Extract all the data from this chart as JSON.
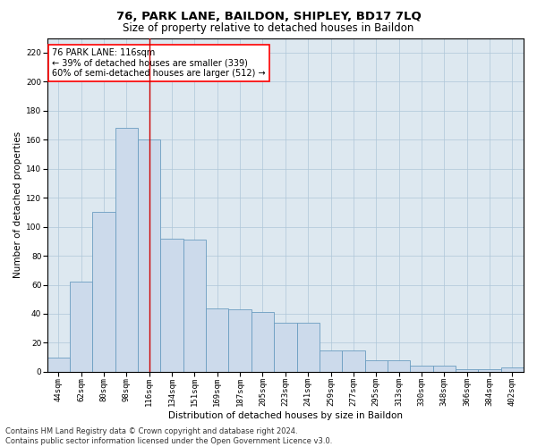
{
  "title1": "76, PARK LANE, BAILDON, SHIPLEY, BD17 7LQ",
  "title2": "Size of property relative to detached houses in Baildon",
  "xlabel": "Distribution of detached houses by size in Baildon",
  "ylabel": "Number of detached properties",
  "categories": [
    "44sqm",
    "62sqm",
    "80sqm",
    "98sqm",
    "116sqm",
    "134sqm",
    "151sqm",
    "169sqm",
    "187sqm",
    "205sqm",
    "223sqm",
    "241sqm",
    "259sqm",
    "277sqm",
    "295sqm",
    "313sqm",
    "330sqm",
    "348sqm",
    "366sqm",
    "384sqm",
    "402sqm"
  ],
  "values": [
    10,
    62,
    110,
    168,
    160,
    92,
    91,
    44,
    43,
    41,
    34,
    34,
    15,
    15,
    8,
    8,
    4,
    4,
    2,
    2,
    3
  ],
  "bar_color": "#ccdaeb",
  "bar_edge_color": "#6a9dc0",
  "highlight_x": "116sqm",
  "highlight_line_color": "#cc0000",
  "annotation_text": "76 PARK LANE: 116sqm\n← 39% of detached houses are smaller (339)\n60% of semi-detached houses are larger (512) →",
  "annotation_box_color": "white",
  "annotation_box_edge": "red",
  "ylim": [
    0,
    230
  ],
  "yticks": [
    0,
    20,
    40,
    60,
    80,
    100,
    120,
    140,
    160,
    180,
    200,
    220
  ],
  "grid_color": "#aec6d8",
  "background_color": "#dde8f0",
  "footer": "Contains HM Land Registry data © Crown copyright and database right 2024.\nContains public sector information licensed under the Open Government Licence v3.0.",
  "title_fontsize": 9.5,
  "subtitle_fontsize": 8.5,
  "axis_label_fontsize": 7.5,
  "tick_fontsize": 6.5,
  "annotation_fontsize": 7,
  "footer_fontsize": 6
}
